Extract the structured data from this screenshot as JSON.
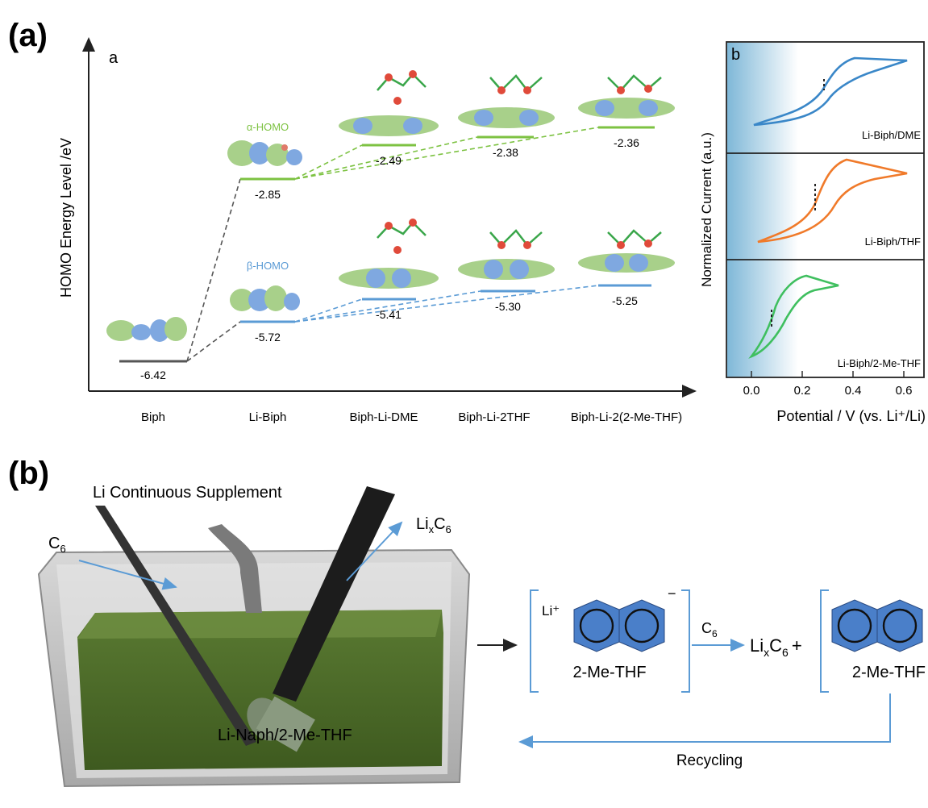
{
  "panel_a": {
    "tag": "(a)",
    "sub_a": "a",
    "ylabel": "HOMO Energy Level /eV",
    "categories": [
      "Biph",
      "Li-Biph",
      "Biph-Li-DME",
      "Biph-Li-2THF",
      "Biph-Li-2(2-Me-THF)"
    ],
    "alpha_label": "α-HOMO",
    "beta_label": "β-HOMO",
    "biph_value": "-6.42",
    "alpha_values": [
      "-2.85",
      "-2.49",
      "-2.38",
      "-2.36"
    ],
    "beta_values": [
      "-5.72",
      "-5.41",
      "-5.30",
      "-5.25"
    ],
    "colors": {
      "alpha": "#7dc242",
      "beta": "#5b9bd5",
      "biph": "#555555"
    }
  },
  "panel_b_cv": {
    "sub_b": "b",
    "ylabel": "Normalized Current (a.u.)",
    "xlabel": "Potential  / V (vs. Li⁺/Li)",
    "xticks": [
      "0.0",
      "0.2",
      "0.4",
      "0.6"
    ],
    "traces": [
      {
        "label": "Li-Biph/DME",
        "color": "#3a87c8"
      },
      {
        "label": "Li-Biph/THF",
        "color": "#f07a2a"
      },
      {
        "label": "Li-Biph/2-Me-THF",
        "color": "#3fbf5f"
      }
    ]
  },
  "panel_b": {
    "tag": "(b)",
    "supplement": "Li Continuous Supplement",
    "c6_in": "C",
    "c6_in_sub": "6",
    "lixc6_out_main": "Li",
    "lixc6_out_sub_x": "x",
    "lixc6_out_c": "C",
    "lixc6_out_sub_6": "6",
    "solution": "Li-Naph/2-Me-THF",
    "li_plus": "Li⁺",
    "minus": "−",
    "solvent_left": "2-Me-THF",
    "solvent_right": "2-Me-THF",
    "reactant": "C",
    "reactant_sub": "6",
    "product_li": "Li",
    "product_x": "x",
    "product_c": "C",
    "product_6": "6",
    "plus": "+",
    "recycling": "Recycling",
    "colors": {
      "ring": "#4a7fc9",
      "arrow": "#5b9bd5",
      "liquid": "#4d6b2a"
    }
  }
}
